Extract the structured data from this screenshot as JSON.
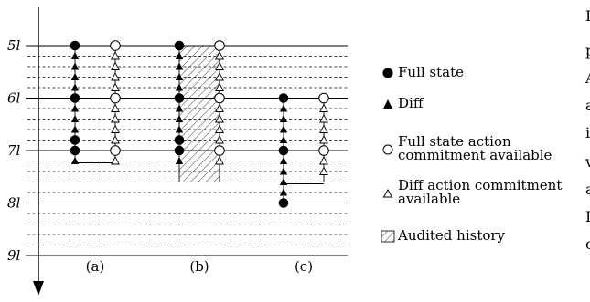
{
  "time_axis": {
    "labels": [
      "5l",
      "6l",
      "7l",
      "8l",
      "9l"
    ]
  },
  "columns": [
    {
      "label": "(a)"
    },
    {
      "label": "(b)"
    },
    {
      "label": "(c)"
    }
  ],
  "legend": {
    "items": [
      {
        "symbol": "filled-circle",
        "label": "Full state"
      },
      {
        "symbol": "filled-triangle",
        "label": "Diff"
      },
      {
        "symbol": "open-circle",
        "label": "Full state action\ncommitment available"
      },
      {
        "symbol": "open-triangle",
        "label": "Diff action commitment\navailable"
      },
      {
        "symbol": "hatched-box",
        "label": "Audited history"
      }
    ]
  },
  "right_edge_fragments": [
    "I",
    "p",
    "A",
    "a",
    "i",
    "v",
    "a",
    "I",
    "c"
  ],
  "colors": {
    "line": "#000000",
    "fill": "#ffffff"
  }
}
